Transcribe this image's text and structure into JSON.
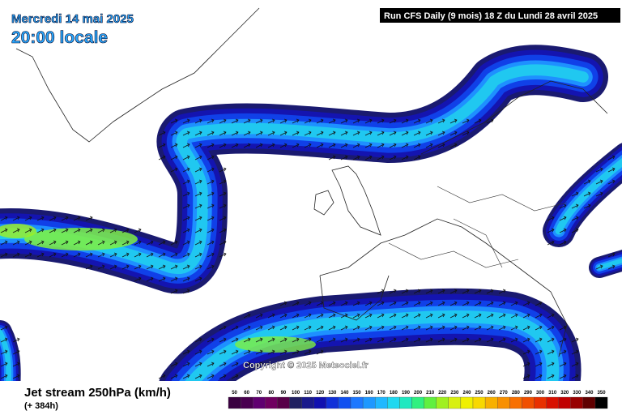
{
  "header": {
    "date": "Mercredi 14 mai 2025",
    "time": "20:00 locale",
    "run": "Run CFS Daily (9 mois) 18 Z du Lundi 28 avril 2025"
  },
  "footer": {
    "title": "Jet stream 250hPa (km/h)",
    "lead": "(+ 384h)"
  },
  "watermark": "Copyright © 2025 Meteociel.fr",
  "legend": {
    "labels": [
      50,
      60,
      70,
      80,
      90,
      100,
      110,
      120,
      130,
      140,
      150,
      160,
      170,
      180,
      190,
      200,
      210,
      220,
      230,
      240,
      250,
      260,
      270,
      280,
      290,
      300,
      310,
      320,
      330,
      340,
      350
    ],
    "colors": [
      "#3a0040",
      "#4a0050",
      "#600070",
      "#700060",
      "#580048",
      "#202060",
      "#1a1a8c",
      "#1010b0",
      "#1030d8",
      "#1050f0",
      "#1e78ff",
      "#1e98ff",
      "#20b8ff",
      "#20d8f0",
      "#20e8c0",
      "#30f080",
      "#60f040",
      "#a0f020",
      "#d8f010",
      "#f0f000",
      "#f8d800",
      "#f8b000",
      "#f89000",
      "#f87000",
      "#f05000",
      "#e83000",
      "#d81000",
      "#c00000",
      "#980000",
      "#600000",
      "#000000"
    ]
  }
}
